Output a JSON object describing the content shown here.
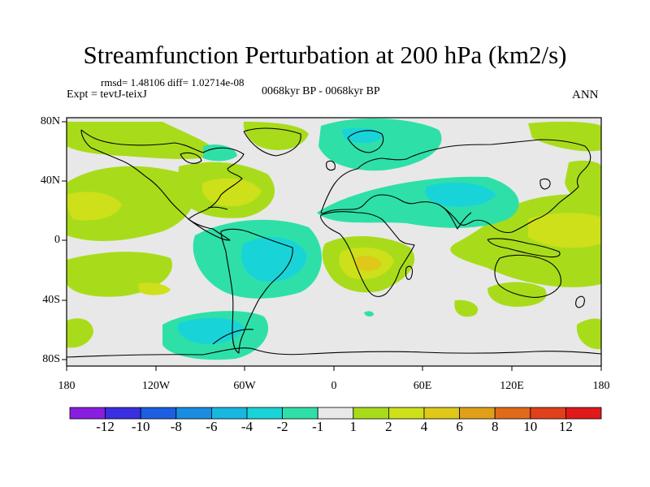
{
  "title": "Streamfunction Perturbation at 200 hPa (km2/s)",
  "stats_line": "rmsd= 1.48106 diff= 1.02714e-08",
  "expt_line": "Expt = tevtJ-teixJ",
  "period_line": "0068kyr BP - 0068kyr BP",
  "season": "ANN",
  "latitude_labels": [
    "80N",
    "40N",
    "0",
    "40S",
    "80S"
  ],
  "longitude_labels": [
    "180",
    "120W",
    "60W",
    "0",
    "60E",
    "120E",
    "180"
  ],
  "colorbar": {
    "labels": [
      "-12",
      "-10",
      "-8",
      "-6",
      "-4",
      "-2",
      "-1",
      "1",
      "2",
      "4",
      "6",
      "8",
      "10",
      "12"
    ],
    "colors": [
      "#8a1ee0",
      "#3a2fe0",
      "#1c5fe0",
      "#1a8de0",
      "#16b8e0",
      "#18d4d8",
      "#2ee0a8",
      "#e8e8e8",
      "#a8dc1a",
      "#cde01a",
      "#e0c81a",
      "#e0a01a",
      "#e06a1a",
      "#e0401a",
      "#e01a1a"
    ]
  },
  "fill_colors": {
    "background": "#e8e8e8",
    "green_pos": "#a8dc1a",
    "yellow_pos": "#cde01a",
    "orange_pos": "#e0c81a",
    "teal_neg": "#2ee0a8",
    "cyan_neg": "#18d4d8",
    "coast": "#000000"
  }
}
